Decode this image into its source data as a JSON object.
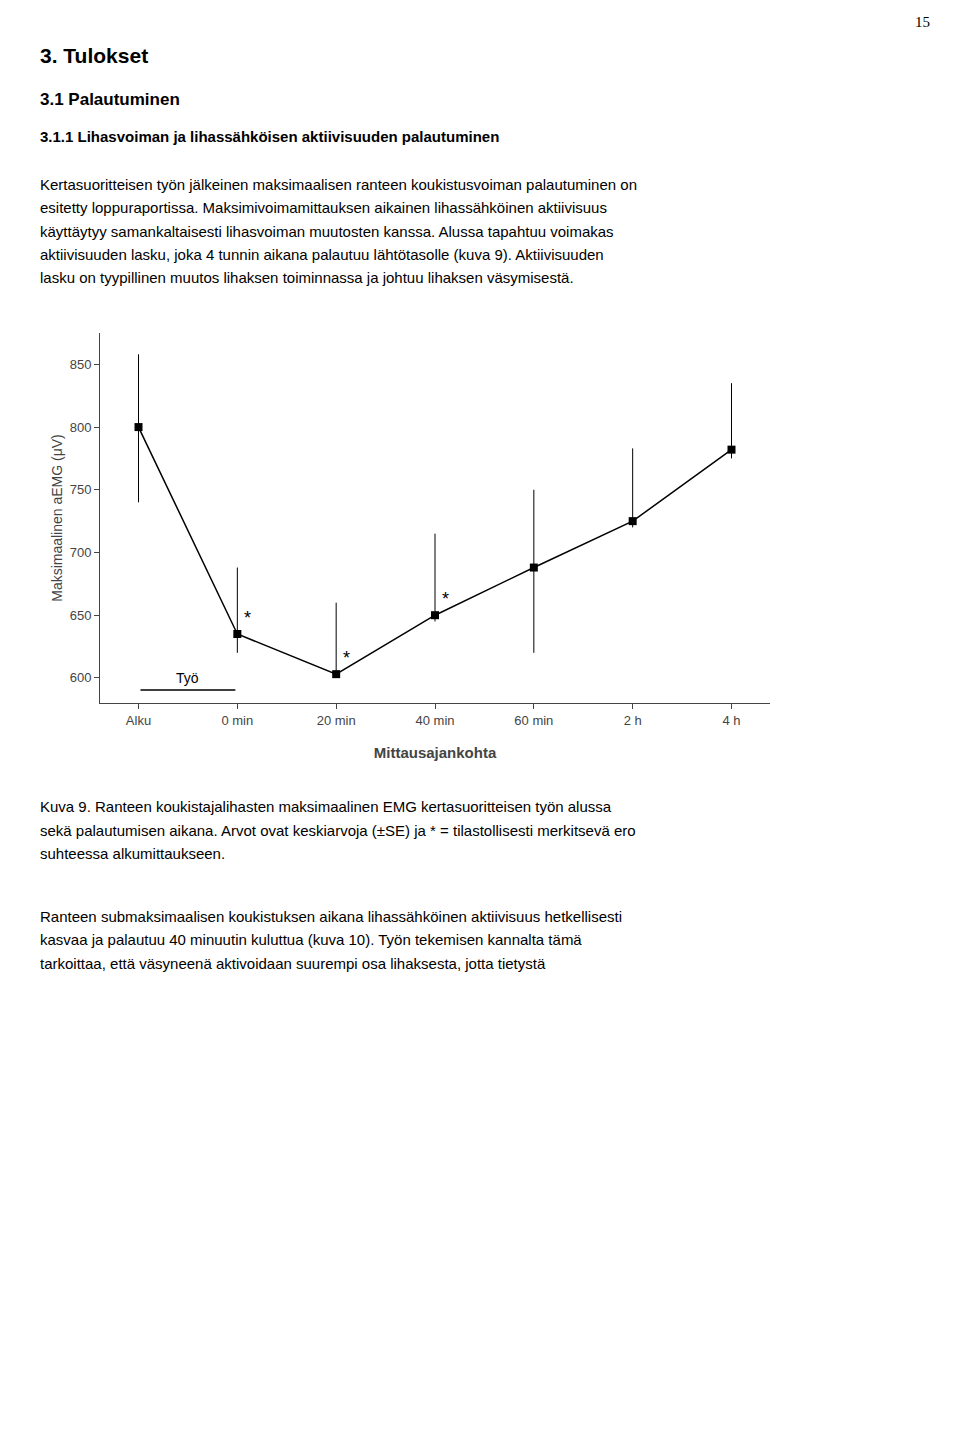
{
  "page_number": "15",
  "headings": [
    "3. Tulokset",
    "3.1 Palautuminen",
    "3.1.1 Lihasvoiman ja lihassähköisen aktiivisuuden palautuminen"
  ],
  "body_text": "Kertasuoritteisen työn jälkeinen maksimaalisen ranteen koukistusvoiman palautuminen on\nesitetty loppuraportissa. Maksimivoimamittauksen aikainen lihassähköinen aktiivisuus\nkäyttäytyy samankaltaisesti lihasvoiman muutosten kanssa. Alussa tapahtuu voimakas\naktiivisuuden lasku, joka 4 tunnin aikana palautuu lähtötasolle (kuva 9). Aktiivisuuden\nlasku on tyypillinen muutos lihaksen toiminnassa ja johtuu lihaksen väsymisestä.",
  "chart_data": {
    "type": "line",
    "categories": [
      "Alku",
      "0 min",
      "20 min",
      "40 min",
      "60 min",
      "2 h",
      "4 h"
    ],
    "values": [
      800,
      635,
      603,
      650,
      688,
      725,
      782
    ],
    "error_upper": [
      58,
      53,
      57,
      65,
      62,
      58,
      53
    ],
    "error_lower": [
      60,
      15,
      3,
      5,
      68,
      5,
      7
    ],
    "ylim": [
      580,
      875
    ],
    "yticks": [
      600,
      650,
      700,
      750,
      800,
      850
    ],
    "ylabel": "Maksimaalinen aEMG (μV)",
    "xlabel": "Mittausajankohta",
    "color": "#000000",
    "marker": "square",
    "grid": false,
    "annotations": [
      {
        "x": "0 min",
        "text": "*"
      },
      {
        "x": "20 min",
        "text": "*"
      },
      {
        "x": "40 min",
        "text": "*"
      },
      {
        "from": "Alku",
        "to": "0 min",
        "text": "Työ"
      }
    ]
  },
  "caption": [
    "Kuva 9. Ranteen koukistajalihasten maksimaalinen EMG kertasuoritteisen työn alussa",
    "sekä palautumisen aikana. Arvot ovat keskiarvoja (±SE) ja * = tilastollisesti merkitsevä ero",
    "suhteessa alkumittaukseen."
  ],
  "bottom_text": "Ranteen submaksimaalisen koukistuksen aikana lihassähköinen aktiivisuus hetkellisesti\nkasvaa ja palautuu 40 minuutin kuluttua (kuva 10). Työn tekemisen kannalta tämä\ntarkoittaa, että väsyneenä aktivoidaan suurempi osa lihaksesta, jotta tietystä"
}
